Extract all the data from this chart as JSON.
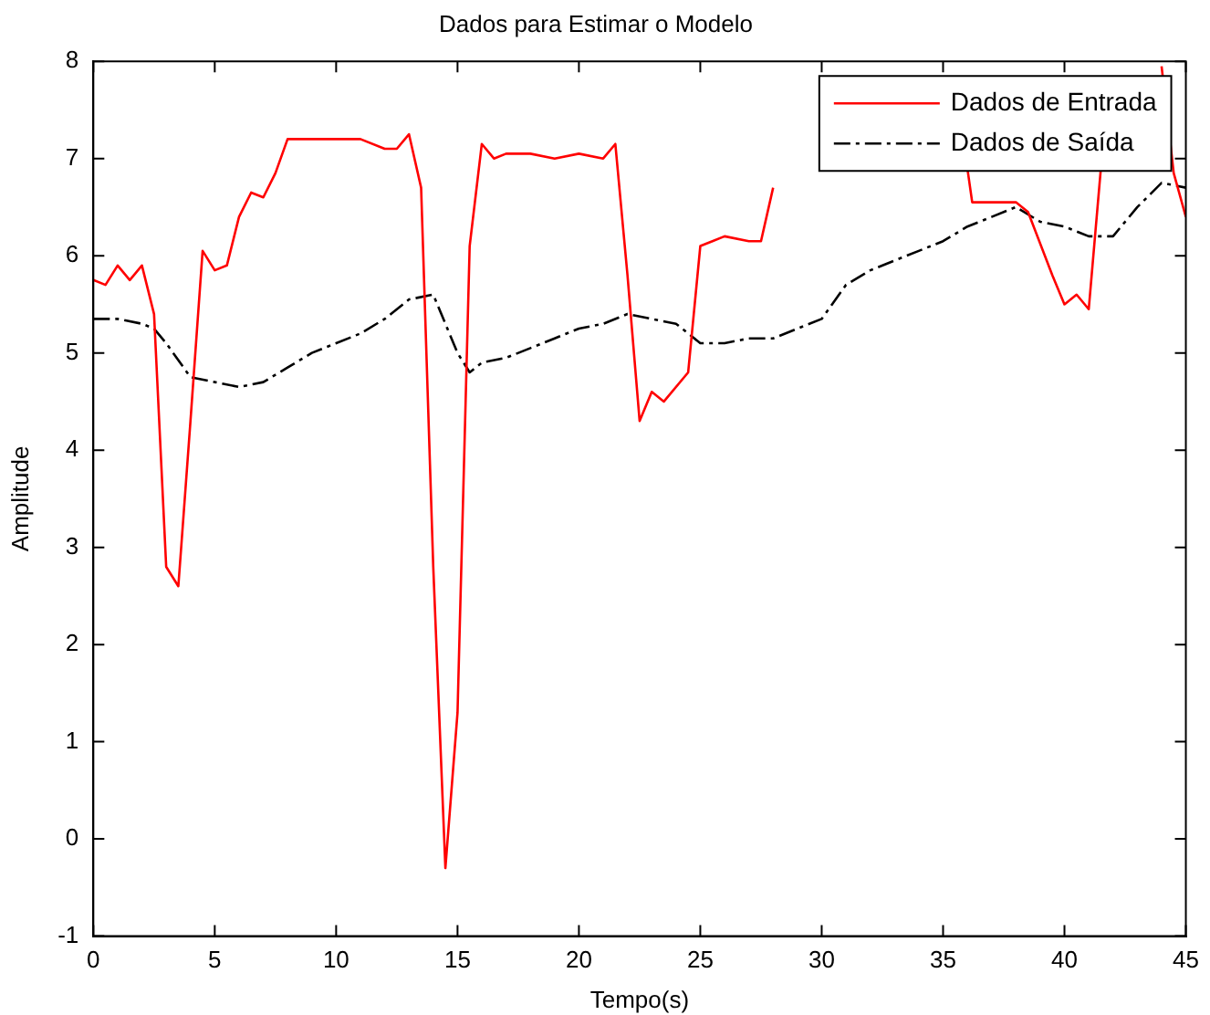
{
  "chart_data": {
    "type": "line",
    "title": "Dados para Estimar o Modelo",
    "xlabel": "Tempo(s)",
    "ylabel": "Amplitude",
    "xlim": [
      0,
      45
    ],
    "xticks": [
      0,
      5,
      10,
      15,
      20,
      25,
      30,
      35,
      40,
      45
    ],
    "ylim": [
      -1,
      8
    ],
    "yticks": [
      -1,
      0,
      1,
      2,
      3,
      4,
      5,
      6,
      7,
      8
    ],
    "grid": false,
    "legend": "top right",
    "marker": "none",
    "series": [
      {
        "name": "Dados de Entrada",
        "color": "#ff0000",
        "line_style": "solid",
        "x": [
          0,
          0.5,
          1,
          1.5,
          2,
          2.5,
          3,
          3.5,
          4,
          4.5,
          5,
          5.5,
          6,
          6.5,
          7,
          7.5,
          8,
          9,
          10,
          11,
          12,
          12.5,
          13,
          13.5,
          14,
          14.5,
          15,
          15.5,
          16,
          16.5,
          17,
          18,
          19,
          20,
          21,
          21.5,
          22,
          22.5,
          23,
          23.5,
          24.5,
          25,
          25.5,
          26,
          27,
          27.5,
          28,
          30,
          36,
          36.2,
          38,
          38.5,
          39.5,
          40,
          40.5,
          41,
          41.5,
          43,
          44,
          44.5,
          45
        ],
        "values": [
          5.75,
          5.7,
          5.9,
          5.75,
          5.9,
          5.4,
          2.8,
          2.6,
          4.3,
          6.05,
          5.85,
          5.9,
          6.4,
          6.65,
          6.6,
          6.85,
          7.2,
          7.2,
          7.2,
          7.2,
          7.1,
          7.1,
          7.25,
          6.7,
          2.8,
          -0.3,
          1.3,
          6.1,
          7.15,
          7.0,
          7.05,
          7.05,
          7.0,
          7.05,
          7.0,
          7.15,
          5.8,
          4.3,
          4.6,
          4.5,
          4.8,
          6.1,
          6.15,
          6.2,
          6.15,
          6.15,
          6.7,
          null,
          6.9,
          6.55,
          6.55,
          6.45,
          5.8,
          5.5,
          5.6,
          5.45,
          6.9,
          null,
          7.95,
          6.85,
          6.4
        ]
      },
      {
        "name": "Dados de Saída",
        "color": "#000000",
        "line_style": "dashdot",
        "x": [
          0,
          1,
          2,
          2.5,
          3,
          4,
          5,
          6,
          7,
          8,
          9,
          10,
          11,
          12,
          13,
          14,
          14.5,
          15,
          15.5,
          16,
          17,
          18,
          19,
          20,
          21,
          22,
          23,
          24,
          25,
          26,
          27,
          28,
          29,
          30,
          31,
          32,
          33,
          34,
          35,
          36,
          37,
          38,
          39,
          40,
          41,
          42,
          43,
          44,
          45
        ],
        "values": [
          5.35,
          5.35,
          5.3,
          5.25,
          5.1,
          4.75,
          4.7,
          4.65,
          4.7,
          4.85,
          5.0,
          5.1,
          5.2,
          5.35,
          5.55,
          5.6,
          5.3,
          5.0,
          4.8,
          4.9,
          4.95,
          5.05,
          5.15,
          5.25,
          5.3,
          5.4,
          5.35,
          5.3,
          5.1,
          5.1,
          5.15,
          5.15,
          5.25,
          5.35,
          5.7,
          5.85,
          5.95,
          6.05,
          6.15,
          6.3,
          6.4,
          6.5,
          6.35,
          6.3,
          6.2,
          6.2,
          6.5,
          6.75,
          6.7
        ]
      }
    ]
  }
}
